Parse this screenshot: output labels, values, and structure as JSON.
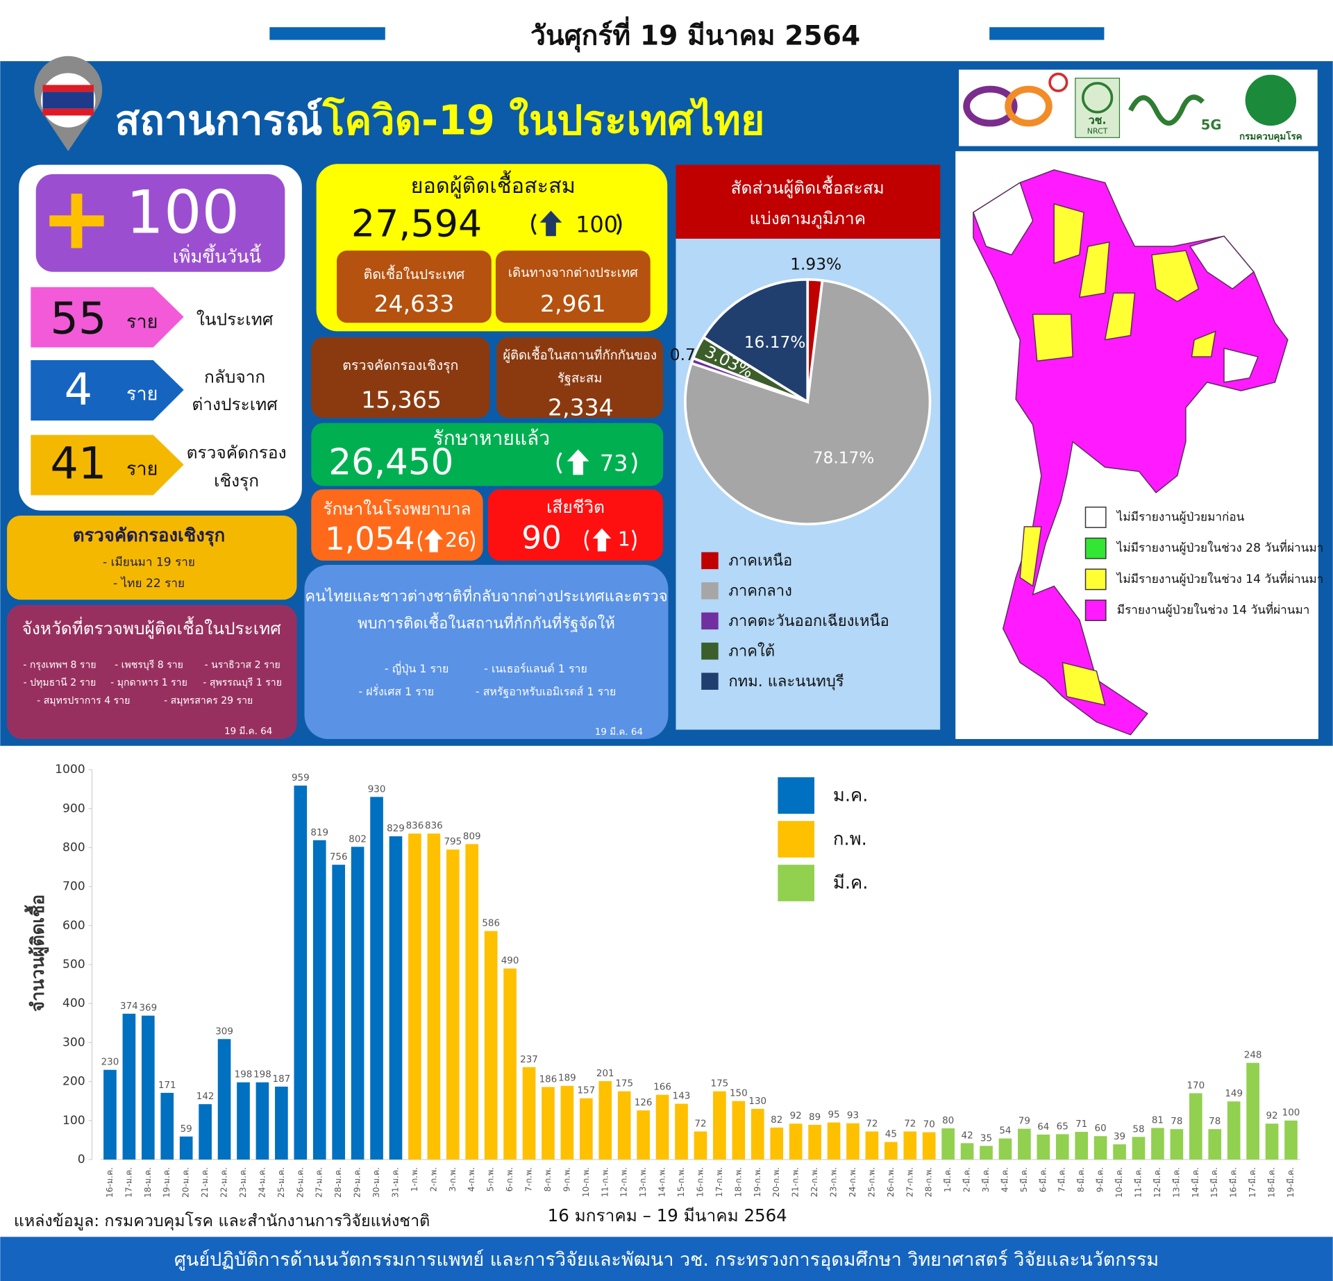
{
  "header": {
    "date": "วันศุกร์ที่ 19 มีนาคม 2564"
  },
  "title": {
    "prefix": "สถานการณ์",
    "highlight": "โควิด-19 ในประเทศไทย"
  },
  "logos": {
    "labels": [
      "วช.",
      "NRCT",
      "5G",
      "กรมควบคุมโรค"
    ]
  },
  "today": {
    "value": 100,
    "label": "เพิ่มขึ้นวันนี้"
  },
  "breakdown": [
    {
      "value": 55,
      "unit": "ราย",
      "label": [
        "ในประเทศ"
      ]
    },
    {
      "value": 4,
      "unit": "ราย",
      "label": [
        "กลับจาก",
        "ต่างประเทศ"
      ]
    },
    {
      "value": 41,
      "unit": "ราย",
      "label": [
        "ตรวจคัดกรอง",
        "เชิงรุก"
      ]
    }
  ],
  "cumulative": {
    "title": "ยอดผู้ติดเชื้อสะสม",
    "total": "27,594",
    "change": 100,
    "local": {
      "label": "ติดเชื้อในประเทศ",
      "value": "24,633"
    },
    "imported": {
      "label": "เดินทางจากต่างประเทศ",
      "value": "2,961"
    }
  },
  "active_search": {
    "label": "ตรวจคัดกรองเชิงรุก",
    "value": "15,365"
  },
  "quarantine": {
    "label": [
      "ผู้ติดเชื้อในสถานที่กักกันของ",
      "รัฐสะสม"
    ],
    "value": "2,334"
  },
  "recovered": {
    "label": "รักษาหายแล้ว",
    "value": "26,450",
    "change": 73
  },
  "hospital": {
    "label": "รักษาในโรงพยาบาล",
    "value": "1,054",
    "change": 26
  },
  "deaths": {
    "label": "เสียชีวิต",
    "value": 90,
    "change": 1
  },
  "screening_box": {
    "title": "ตรวจคัดกรองเชิงรุก",
    "lines": [
      "- เมียนมา  19  ราย",
      "- ไทย  22  ราย"
    ]
  },
  "provinces_box": {
    "title": "จังหวัดที่ตรวจพบผู้ติดเชื้อในประเทศ",
    "rows": [
      [
        "- กรุงเทพฯ  8  ราย",
        "- เพชรบุรี  8  ราย",
        "- นราธิวาส  2  ราย"
      ],
      [
        "- ปทุมธานี  2  ราย",
        "- มุกดาหาร  1  ราย",
        "- สุพรรณบุรี  1  ราย"
      ],
      [
        "- สมุทรปราการ  4  ราย",
        "- สมุทรสาคร  29  ราย"
      ]
    ],
    "date": "19 มี.ค. 64"
  },
  "returnees_box": {
    "title": [
      "คนไทยและชาวต่างชาติที่กลับจากต่างประเทศและตรวจ",
      "พบการติดเชื้อในสถานที่กักกันที่รัฐจัดให้"
    ],
    "rows": [
      [
        "- ญี่ปุ่น  1  ราย",
        "- เนเธอร์แลนด์  1  ราย"
      ],
      [
        "- ฝรั่งเศส  1  ราย",
        "- สหรัฐอาหรับเอมิเรตส์  1  ราย"
      ]
    ],
    "date": "19 มี.ค. 64"
  },
  "map": {
    "legend": [
      {
        "label": "ไม่มีรายงานผู้ป่วยมาก่อน",
        "color": "#ffffff"
      },
      {
        "label": "ไม่มีรายงานผู้ป่วยในช่วง 28 วันที่ผ่านมา",
        "color": "#33e633"
      },
      {
        "label": "ไม่มีรายงานผู้ป่วยในช่วง 14 วันที่ผ่านมา",
        "color": "#ffff33"
      },
      {
        "label": "มีรายงานผู้ป่วยในช่วง 14 วันที่ผ่านมา",
        "color": "#ff1aff"
      }
    ]
  },
  "chart_data": [
    {
      "type": "pie",
      "title": "สัดส่วนผู้ติดเชื้อสะสม",
      "subtitle": "แบ่งตามภูมิภาค",
      "categories": [
        "ภาคเหนือ",
        "ภาคกลาง",
        "ภาคตะวันออกเฉียงเหนือ",
        "ภาคใต้",
        "กทม. และนนทบุรี"
      ],
      "values": [
        1.93,
        78.17,
        0.7,
        3.03,
        16.17
      ],
      "value_labels": [
        "1.93%",
        "78.17%",
        "0.70%",
        "3.03%",
        "16.17%"
      ],
      "colors": [
        "#c00000",
        "#a6a6a6",
        "#7030a0",
        "#3b5e2b",
        "#213f6e"
      ]
    },
    {
      "type": "bar",
      "y_label": "จำนวนผู้ติดเชื้อ",
      "x_label": "16 มกราคม – 19 มีนาคม 2564",
      "ylim": [
        0,
        1000
      ],
      "yticks": [
        0,
        100,
        200,
        300,
        400,
        500,
        600,
        700,
        800,
        900,
        1000
      ],
      "grid": false,
      "categories": [
        "16-ม.ค.",
        "17-ม.ค.",
        "18-ม.ค.",
        "19-ม.ค.",
        "20-ม.ค.",
        "21-ม.ค.",
        "22-ม.ค.",
        "23-ม.ค.",
        "24-ม.ค.",
        "25-ม.ค.",
        "26-ม.ค.",
        "27-ม.ค.",
        "28-ม.ค.",
        "29-ม.ค.",
        "30-ม.ค.",
        "31-ม.ค.",
        "1-ก.พ.",
        "2-ก.พ.",
        "3-ก.พ.",
        "4-ก.พ.",
        "5-ก.พ.",
        "6-ก.พ.",
        "7-ก.พ.",
        "8-ก.พ.",
        "9-ก.พ.",
        "10-ก.พ.",
        "11-ก.พ.",
        "12-ก.พ.",
        "13-ก.พ.",
        "14-ก.พ.",
        "15-ก.พ.",
        "16-ก.พ.",
        "17-ก.พ.",
        "18-ก.พ.",
        "19-ก.พ.",
        "20-ก.พ.",
        "21-ก.พ.",
        "22-ก.พ.",
        "23-ก.พ.",
        "24-ก.พ.",
        "25-ก.พ.",
        "26-ก.พ.",
        "27-ก.พ.",
        "28-ก.พ.",
        "1-มี.ค.",
        "2-มี.ค.",
        "3-มี.ค.",
        "4-มี.ค.",
        "5-มี.ค.",
        "6-มี.ค.",
        "7-มี.ค.",
        "8-มี.ค.",
        "9-มี.ค.",
        "10-มี.ค.",
        "11-มี.ค.",
        "12-มี.ค.",
        "13-มี.ค.",
        "14-มี.ค.",
        "15-มี.ค.",
        "16-มี.ค.",
        "17-มี.ค.",
        "18-มี.ค.",
        "19-มี.ค."
      ],
      "series": [
        {
          "name": "ม.ค.",
          "color": "#0070c0",
          "values": [
            230,
            374,
            369,
            171,
            59,
            142,
            309,
            198,
            198,
            187,
            959,
            819,
            756,
            802,
            930,
            829,
            null,
            null,
            null,
            null,
            null,
            null,
            null,
            null,
            null,
            null,
            null,
            null,
            null,
            null,
            null,
            null,
            null,
            null,
            null,
            null,
            null,
            null,
            null,
            null,
            null,
            null,
            null,
            null,
            null,
            null,
            null,
            null,
            null,
            null,
            null,
            null,
            null,
            null,
            null,
            null,
            null,
            null,
            null,
            null,
            null,
            null,
            null
          ]
        },
        {
          "name": "ก.พ.",
          "color": "#ffc000",
          "values": [
            null,
            null,
            null,
            null,
            null,
            null,
            null,
            null,
            null,
            null,
            null,
            null,
            null,
            null,
            null,
            null,
            836,
            836,
            795,
            809,
            586,
            490,
            237,
            186,
            189,
            157,
            201,
            175,
            126,
            166,
            143,
            72,
            175,
            150,
            130,
            82,
            92,
            89,
            95,
            93,
            72,
            45,
            72,
            70,
            null,
            null,
            null,
            null,
            null,
            null,
            null,
            null,
            null,
            null,
            null,
            null,
            null,
            null,
            null,
            null,
            null,
            null,
            null
          ]
        },
        {
          "name": "มี.ค.",
          "color": "#92d050",
          "values": [
            null,
            null,
            null,
            null,
            null,
            null,
            null,
            null,
            null,
            null,
            null,
            null,
            null,
            null,
            null,
            null,
            null,
            null,
            null,
            null,
            null,
            null,
            null,
            null,
            null,
            null,
            null,
            null,
            null,
            null,
            null,
            null,
            null,
            null,
            null,
            null,
            null,
            null,
            null,
            null,
            null,
            null,
            null,
            null,
            80,
            42,
            35,
            54,
            79,
            64,
            65,
            71,
            60,
            39,
            58,
            81,
            78,
            170,
            78,
            149,
            248,
            92,
            100
          ]
        }
      ]
    }
  ],
  "footer": {
    "source": "แหล่งข้อมูล: กรมควบคุมโรค และสำนักงานการวิจัยแห่งชาติ",
    "credit": "ศูนย์ปฏิบัติการด้านนวัตกรรมการแพทย์ และการวิจัยและพัฒนา  วช.   กระทรวงการอุดมศึกษา วิทยาศาสตร์ วิจัยและนวัตกรรม"
  }
}
